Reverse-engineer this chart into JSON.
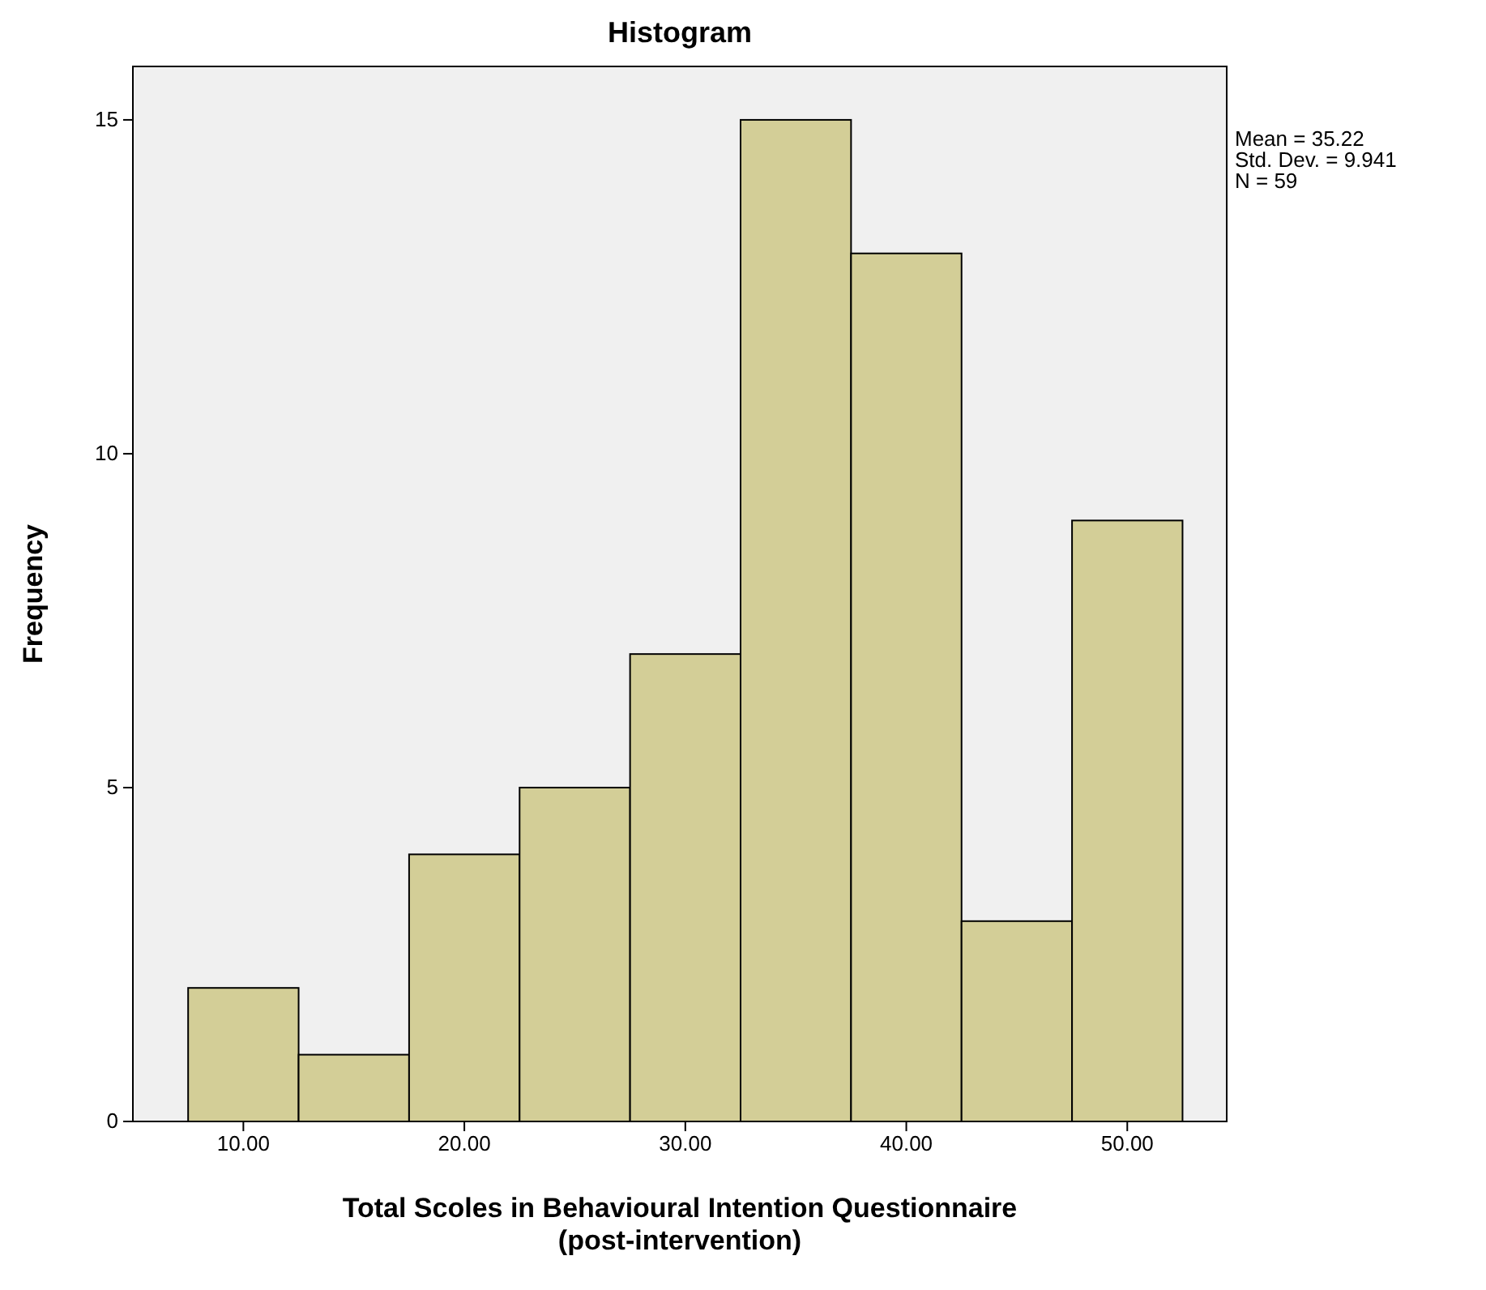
{
  "chart_data": {
    "type": "histogram",
    "title": "Histogram",
    "xlabel": "Total Scoles in Behavioural Intention Questionnaire\n(post-intervention)",
    "ylabel": "Frequency",
    "bins": [
      7.5,
      12.5,
      17.5,
      22.5,
      27.5,
      32.5,
      37.5,
      42.5,
      47.5,
      52.5
    ],
    "values": [
      2,
      1,
      4,
      5,
      7,
      15,
      13,
      3,
      9
    ],
    "color": "#d3ce97",
    "xlim": [
      5,
      54.5
    ],
    "ylim": [
      0,
      15.8
    ],
    "xticks": [
      {
        "value": 10,
        "label": "10.00"
      },
      {
        "value": 20,
        "label": "20.00"
      },
      {
        "value": 30,
        "label": "30.00"
      },
      {
        "value": 40,
        "label": "40.00"
      },
      {
        "value": 50,
        "label": "50.00"
      }
    ],
    "yticks": [
      0,
      5,
      10,
      15
    ],
    "annotations": [
      "Mean = 35.22\nStd. Dev. = 9.941\nN = 59"
    ],
    "grid": false
  }
}
